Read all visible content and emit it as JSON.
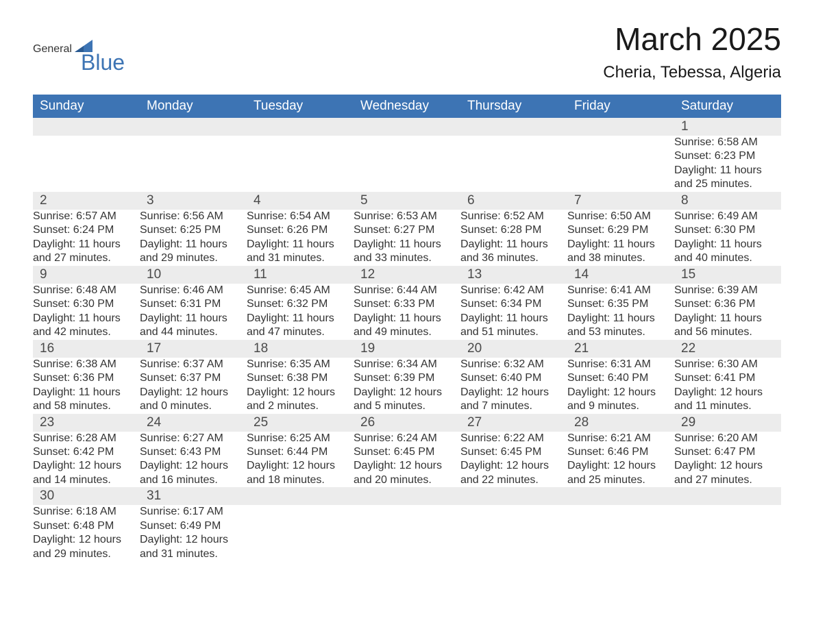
{
  "logo": {
    "general": "General",
    "blue": "Blue"
  },
  "title": {
    "month": "March 2025",
    "location": "Cheria, Tebessa, Algeria"
  },
  "colors": {
    "header_bg": "#3d74b4",
    "header_text": "#ffffff",
    "daynum_bg": "#ececec",
    "row_border": "#3d74b4",
    "body_text": "#333333"
  },
  "typography": {
    "month_title_pt": 46,
    "location_pt": 24,
    "weekday_pt": 19,
    "daynum_pt": 19,
    "cell_pt": 16
  },
  "weekdays": [
    "Sunday",
    "Monday",
    "Tuesday",
    "Wednesday",
    "Thursday",
    "Friday",
    "Saturday"
  ],
  "labels": {
    "sunrise": "Sunrise:",
    "sunset": "Sunset:",
    "daylight": "Daylight:"
  },
  "weeks": [
    [
      null,
      null,
      null,
      null,
      null,
      null,
      {
        "n": "1",
        "sr": "6:58 AM",
        "ss": "6:23 PM",
        "dl": "11 hours and 25 minutes."
      }
    ],
    [
      {
        "n": "2",
        "sr": "6:57 AM",
        "ss": "6:24 PM",
        "dl": "11 hours and 27 minutes."
      },
      {
        "n": "3",
        "sr": "6:56 AM",
        "ss": "6:25 PM",
        "dl": "11 hours and 29 minutes."
      },
      {
        "n": "4",
        "sr": "6:54 AM",
        "ss": "6:26 PM",
        "dl": "11 hours and 31 minutes."
      },
      {
        "n": "5",
        "sr": "6:53 AM",
        "ss": "6:27 PM",
        "dl": "11 hours and 33 minutes."
      },
      {
        "n": "6",
        "sr": "6:52 AM",
        "ss": "6:28 PM",
        "dl": "11 hours and 36 minutes."
      },
      {
        "n": "7",
        "sr": "6:50 AM",
        "ss": "6:29 PM",
        "dl": "11 hours and 38 minutes."
      },
      {
        "n": "8",
        "sr": "6:49 AM",
        "ss": "6:30 PM",
        "dl": "11 hours and 40 minutes."
      }
    ],
    [
      {
        "n": "9",
        "sr": "6:48 AM",
        "ss": "6:30 PM",
        "dl": "11 hours and 42 minutes."
      },
      {
        "n": "10",
        "sr": "6:46 AM",
        "ss": "6:31 PM",
        "dl": "11 hours and 44 minutes."
      },
      {
        "n": "11",
        "sr": "6:45 AM",
        "ss": "6:32 PM",
        "dl": "11 hours and 47 minutes."
      },
      {
        "n": "12",
        "sr": "6:44 AM",
        "ss": "6:33 PM",
        "dl": "11 hours and 49 minutes."
      },
      {
        "n": "13",
        "sr": "6:42 AM",
        "ss": "6:34 PM",
        "dl": "11 hours and 51 minutes."
      },
      {
        "n": "14",
        "sr": "6:41 AM",
        "ss": "6:35 PM",
        "dl": "11 hours and 53 minutes."
      },
      {
        "n": "15",
        "sr": "6:39 AM",
        "ss": "6:36 PM",
        "dl": "11 hours and 56 minutes."
      }
    ],
    [
      {
        "n": "16",
        "sr": "6:38 AM",
        "ss": "6:36 PM",
        "dl": "11 hours and 58 minutes."
      },
      {
        "n": "17",
        "sr": "6:37 AM",
        "ss": "6:37 PM",
        "dl": "12 hours and 0 minutes."
      },
      {
        "n": "18",
        "sr": "6:35 AM",
        "ss": "6:38 PM",
        "dl": "12 hours and 2 minutes."
      },
      {
        "n": "19",
        "sr": "6:34 AM",
        "ss": "6:39 PM",
        "dl": "12 hours and 5 minutes."
      },
      {
        "n": "20",
        "sr": "6:32 AM",
        "ss": "6:40 PM",
        "dl": "12 hours and 7 minutes."
      },
      {
        "n": "21",
        "sr": "6:31 AM",
        "ss": "6:40 PM",
        "dl": "12 hours and 9 minutes."
      },
      {
        "n": "22",
        "sr": "6:30 AM",
        "ss": "6:41 PM",
        "dl": "12 hours and 11 minutes."
      }
    ],
    [
      {
        "n": "23",
        "sr": "6:28 AM",
        "ss": "6:42 PM",
        "dl": "12 hours and 14 minutes."
      },
      {
        "n": "24",
        "sr": "6:27 AM",
        "ss": "6:43 PM",
        "dl": "12 hours and 16 minutes."
      },
      {
        "n": "25",
        "sr": "6:25 AM",
        "ss": "6:44 PM",
        "dl": "12 hours and 18 minutes."
      },
      {
        "n": "26",
        "sr": "6:24 AM",
        "ss": "6:45 PM",
        "dl": "12 hours and 20 minutes."
      },
      {
        "n": "27",
        "sr": "6:22 AM",
        "ss": "6:45 PM",
        "dl": "12 hours and 22 minutes."
      },
      {
        "n": "28",
        "sr": "6:21 AM",
        "ss": "6:46 PM",
        "dl": "12 hours and 25 minutes."
      },
      {
        "n": "29",
        "sr": "6:20 AM",
        "ss": "6:47 PM",
        "dl": "12 hours and 27 minutes."
      }
    ],
    [
      {
        "n": "30",
        "sr": "6:18 AM",
        "ss": "6:48 PM",
        "dl": "12 hours and 29 minutes."
      },
      {
        "n": "31",
        "sr": "6:17 AM",
        "ss": "6:49 PM",
        "dl": "12 hours and 31 minutes."
      },
      null,
      null,
      null,
      null,
      null
    ]
  ]
}
